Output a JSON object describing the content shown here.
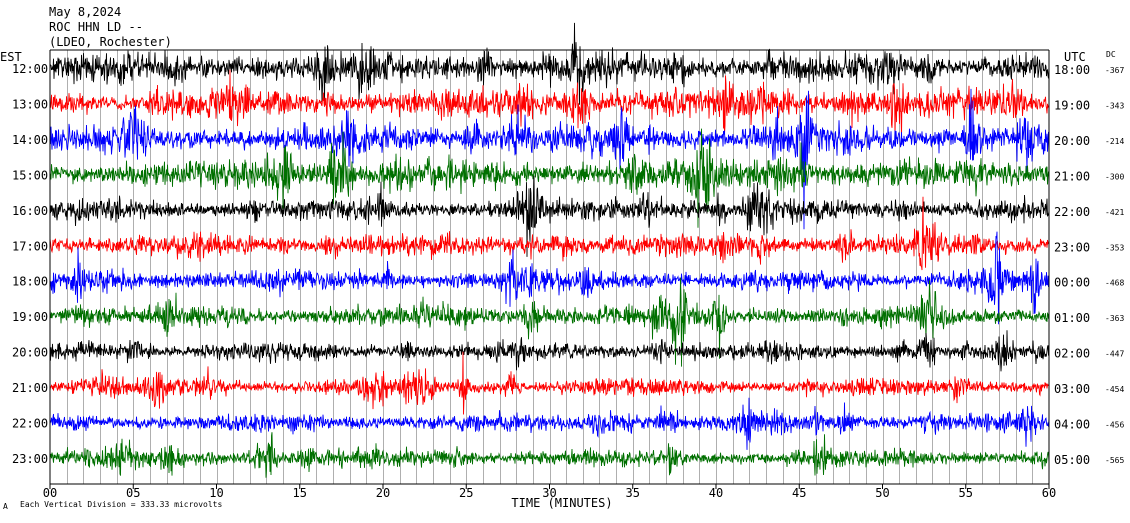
{
  "header": {
    "date": "May 8,2024",
    "station": "ROC HHN LD --",
    "location": "(LDEO, Rochester)"
  },
  "labels": {
    "left_tz": "EST",
    "right_tz": "UTC",
    "dc": "DC",
    "xlabel": "TIME (MINUTES)",
    "footer": "Each Vertical Division =  333.33 microvolts",
    "footer_mark": "A"
  },
  "colors": {
    "black": "#000000",
    "red": "#ff0000",
    "blue": "#0000ff",
    "green": "#007000"
  },
  "chart_data": {
    "type": "line",
    "title": "ROC HHN LD --",
    "xlabel": "TIME (MINUTES)",
    "xlim": [
      0,
      60
    ],
    "x_ticks": [
      "00",
      "05",
      "10",
      "15",
      "20",
      "25",
      "30",
      "35",
      "40",
      "45",
      "50",
      "55",
      "60"
    ],
    "grid": "vertical lines every minute",
    "rows": [
      {
        "est": "12:00",
        "utc": "18:00",
        "dc": "-367",
        "color": "black"
      },
      {
        "est": "13:00",
        "utc": "19:00",
        "dc": "-343",
        "color": "red"
      },
      {
        "est": "14:00",
        "utc": "20:00",
        "dc": "-214",
        "color": "blue"
      },
      {
        "est": "15:00",
        "utc": "21:00",
        "dc": "-300",
        "color": "green"
      },
      {
        "est": "16:00",
        "utc": "22:00",
        "dc": "-421",
        "color": "black"
      },
      {
        "est": "17:00",
        "utc": "23:00",
        "dc": "-353",
        "color": "red"
      },
      {
        "est": "18:00",
        "utc": "00:00",
        "dc": "-468",
        "color": "blue"
      },
      {
        "est": "19:00",
        "utc": "01:00",
        "dc": "-363",
        "color": "green"
      },
      {
        "est": "20:00",
        "utc": "02:00",
        "dc": "-447",
        "color": "black"
      },
      {
        "est": "21:00",
        "utc": "03:00",
        "dc": "-454",
        "color": "red"
      },
      {
        "est": "22:00",
        "utc": "04:00",
        "dc": "-456",
        "color": "blue"
      },
      {
        "est": "23:00",
        "utc": "05:00",
        "dc": "-565",
        "color": "green"
      }
    ]
  }
}
